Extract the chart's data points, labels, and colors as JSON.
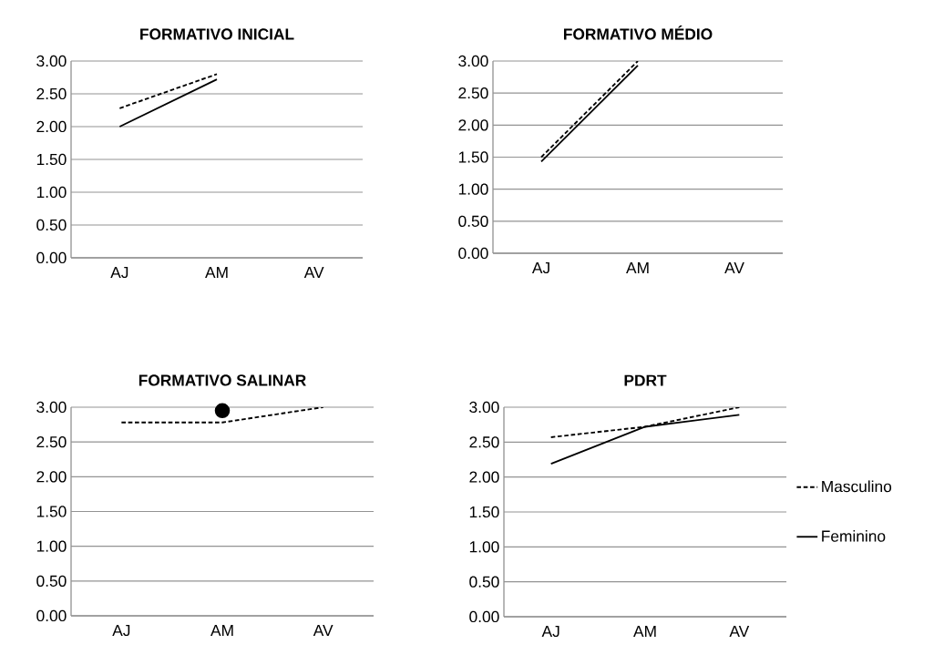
{
  "chart_data": [
    {
      "type": "line",
      "title": "FORMATIVO INICIAL",
      "categories": [
        "AJ",
        "AM",
        "AV"
      ],
      "ylim": [
        0,
        3
      ],
      "yticks": [
        {
          "value": 0,
          "label": "0.00"
        },
        {
          "value": 0.5,
          "label": "0.50"
        },
        {
          "value": 1,
          "label": "1.00"
        },
        {
          "value": 1.5,
          "label": "1.50"
        },
        {
          "value": 2,
          "label": "2.00"
        },
        {
          "value": 2.5,
          "label": "2.50"
        },
        {
          "value": 3,
          "label": "3.00"
        }
      ],
      "grid": "y",
      "marker": "none",
      "legend": false,
      "series": [
        {
          "color": "#000000",
          "line_style": "dashed",
          "values": [
            2.28,
            2.8,
            null
          ]
        },
        {
          "color": "#000000",
          "line_style": "solid",
          "values": [
            2.0,
            2.72,
            null
          ]
        }
      ]
    },
    {
      "type": "line",
      "title": "FORMATIVO MÉDIO",
      "categories": [
        "AJ",
        "AM",
        "AV"
      ],
      "ylim": [
        0,
        3
      ],
      "yticks": [
        {
          "value": 0,
          "label": "0.00"
        },
        {
          "value": 0.5,
          "label": "0.50"
        },
        {
          "value": 1,
          "label": "1.00"
        },
        {
          "value": 1.5,
          "label": "1.50"
        },
        {
          "value": 2,
          "label": "2.00"
        },
        {
          "value": 2.5,
          "label": "2.50"
        },
        {
          "value": 3,
          "label": "3.00"
        }
      ],
      "grid": "y",
      "marker": "none",
      "legend": false,
      "series": [
        {
          "color": "#000000",
          "line_style": "dashed",
          "values": [
            1.5,
            3.0,
            null
          ]
        },
        {
          "color": "#000000",
          "line_style": "solid",
          "values": [
            1.43,
            2.93,
            null
          ]
        }
      ]
    },
    {
      "type": "line",
      "title": "FORMATIVO SALINAR",
      "categories": [
        "AJ",
        "AM",
        "AV"
      ],
      "ylim": [
        0,
        3
      ],
      "yticks": [
        {
          "value": 0,
          "label": "0.00"
        },
        {
          "value": 0.5,
          "label": "0.50"
        },
        {
          "value": 1,
          "label": "1.00"
        },
        {
          "value": 1.5,
          "label": "1.50"
        },
        {
          "value": 2,
          "label": "2.00"
        },
        {
          "value": 2.5,
          "label": "2.50"
        },
        {
          "value": 3,
          "label": "3.00"
        }
      ],
      "grid": "y",
      "marker": "none",
      "legend": false,
      "series": [
        {
          "color": "#000000",
          "line_style": "dashed",
          "values": [
            2.78,
            2.78,
            3.0
          ]
        },
        {
          "color": "#000000",
          "line_style": "solid",
          "marker": "circle",
          "values": [
            null,
            2.95,
            null
          ]
        }
      ]
    },
    {
      "type": "line",
      "title": "PDRT",
      "categories": [
        "AJ",
        "AM",
        "AV"
      ],
      "ylim": [
        0,
        3
      ],
      "yticks": [
        {
          "value": 0,
          "label": "0.00"
        },
        {
          "value": 0.5,
          "label": "0.50"
        },
        {
          "value": 1,
          "label": "1.00"
        },
        {
          "value": 1.5,
          "label": "1.50"
        },
        {
          "value": 2,
          "label": "2.00"
        },
        {
          "value": 2.5,
          "label": "2.50"
        },
        {
          "value": 3,
          "label": "3.00"
        }
      ],
      "grid": "y",
      "marker": "none",
      "legend": "right",
      "series": [
        {
          "name": "Masculino",
          "color": "#000000",
          "line_style": "dashed",
          "values": [
            2.57,
            2.72,
            3.0
          ]
        },
        {
          "name": "Feminino",
          "color": "#000000",
          "line_style": "solid",
          "values": [
            2.19,
            2.72,
            2.89
          ]
        }
      ]
    }
  ]
}
